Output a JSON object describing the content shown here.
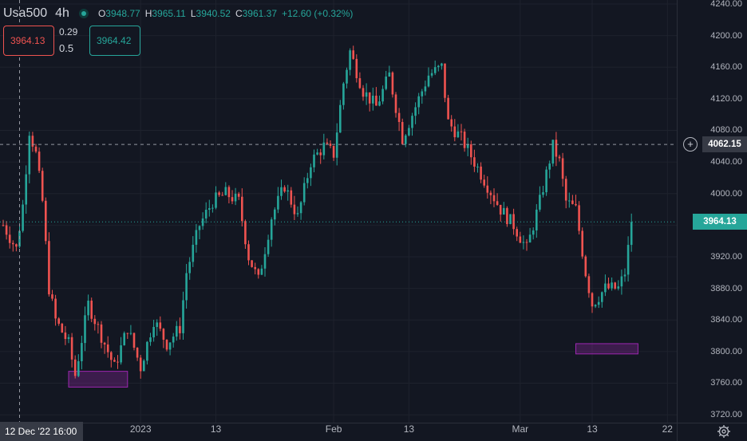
{
  "legend": {
    "symbol": "Usa500",
    "timeframe": "4h",
    "open_label": "O",
    "open": "3948.77",
    "high_label": "H",
    "high": "3965.11",
    "low_label": "L",
    "low": "3940.52",
    "close_label": "C",
    "close": "3961.37",
    "change": "+12.60 (+0.32%)"
  },
  "trade": {
    "sell_price": "3964.13",
    "buy_price": "3964.42",
    "spread_top": "0.29",
    "spread_bottom": "0.5"
  },
  "labels": {
    "last_price": "3964.13",
    "crosshair_price": "4062.15",
    "crosshair_time": "12 Dec '22  16:00"
  },
  "colors": {
    "background": "#131722",
    "up": "#26a69a",
    "down": "#ef5350",
    "grid": "#1e222d",
    "highlight_box": "#9c27b0"
  },
  "chart_data": {
    "type": "candlestick",
    "ylim": [
      3710,
      4245
    ],
    "y_ticks": [
      "4240.00",
      "4200.00",
      "4160.00",
      "4120.00",
      "4080.00",
      "4040.00",
      "4000.00",
      "3960.00",
      "3920.00",
      "3880.00",
      "3840.00",
      "3800.00",
      "3760.00",
      "3720.00"
    ],
    "y_tick_values": [
      4240,
      4200,
      4160,
      4120,
      4080,
      4040,
      4000,
      3960,
      3920,
      3880,
      3840,
      3800,
      3760,
      3720
    ],
    "x_ticks": [
      {
        "label": "2023",
        "index": 42
      },
      {
        "label": "13",
        "index": 65
      },
      {
        "label": "Feb",
        "index": 101
      },
      {
        "label": "13",
        "index": 124
      },
      {
        "label": "Mar",
        "index": 158
      },
      {
        "label": "13",
        "index": 180
      },
      {
        "label": "22",
        "index": 203
      }
    ],
    "candle_count": 193,
    "last_price": 3964.13,
    "crosshair_price": 4062.15,
    "crosshair_index": 5,
    "path_keypoints": [
      [
        0,
        3960
      ],
      [
        4,
        3930
      ],
      [
        6,
        3985
      ],
      [
        8,
        4080
      ],
      [
        10,
        4050
      ],
      [
        12,
        3990
      ],
      [
        14,
        3880
      ],
      [
        16,
        3840
      ],
      [
        20,
        3810
      ],
      [
        22,
        3770
      ],
      [
        26,
        3860
      ],
      [
        30,
        3820
      ],
      [
        34,
        3780
      ],
      [
        38,
        3830
      ],
      [
        42,
        3780
      ],
      [
        46,
        3840
      ],
      [
        50,
        3810
      ],
      [
        54,
        3830
      ],
      [
        56,
        3900
      ],
      [
        60,
        3960
      ],
      [
        64,
        3990
      ],
      [
        68,
        4000
      ],
      [
        72,
        3990
      ],
      [
        75,
        3920
      ],
      [
        78,
        3890
      ],
      [
        82,
        3970
      ],
      [
        86,
        4010
      ],
      [
        90,
        3970
      ],
      [
        94,
        4040
      ],
      [
        98,
        4060
      ],
      [
        101,
        4050
      ],
      [
        104,
        4140
      ],
      [
        106,
        4180
      ],
      [
        110,
        4130
      ],
      [
        114,
        4110
      ],
      [
        118,
        4150
      ],
      [
        122,
        4070
      ],
      [
        124,
        4090
      ],
      [
        126,
        4110
      ],
      [
        130,
        4150
      ],
      [
        134,
        4160
      ],
      [
        136,
        4090
      ],
      [
        140,
        4070
      ],
      [
        144,
        4040
      ],
      [
        148,
        4010
      ],
      [
        152,
        3980
      ],
      [
        156,
        3960
      ],
      [
        160,
        3930
      ],
      [
        164,
        3990
      ],
      [
        168,
        4060
      ],
      [
        170,
        4040
      ],
      [
        172,
        3990
      ],
      [
        175,
        3980
      ],
      [
        178,
        3900
      ],
      [
        180,
        3860
      ],
      [
        184,
        3880
      ],
      [
        188,
        3880
      ],
      [
        190,
        3900
      ],
      [
        192,
        3961
      ]
    ],
    "highlight_boxes": [
      {
        "from_index": 20,
        "to_index": 38,
        "low": 3755,
        "high": 3775
      },
      {
        "from_index": 175,
        "to_index": 194,
        "low": 3797,
        "high": 3810
      }
    ]
  }
}
